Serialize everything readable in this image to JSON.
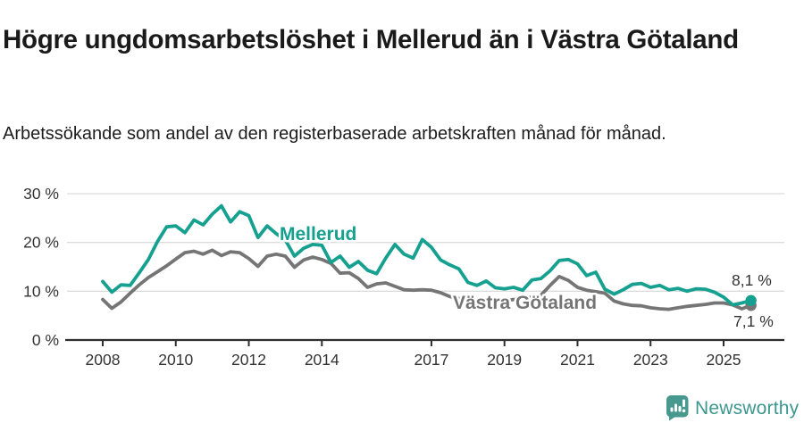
{
  "header": {
    "title": "Högre ungdomsarbetslöshet i Mellerud än i Västra Götaland",
    "subtitle": "Arbetssökande som andel av den registerbaserade arbetskraften månad för månad."
  },
  "chart_data": {
    "type": "line",
    "title": "Högre ungdomsarbetslöshet i Mellerud än i Västra Götaland",
    "xlabel": "",
    "ylabel": "",
    "grid": "horizontal",
    "legend_position": "inline-labels",
    "ylim": [
      0,
      30
    ],
    "xlim": [
      2007,
      2026.6
    ],
    "y_ticks": [
      {
        "value": 30,
        "label": "30 %"
      },
      {
        "value": 20,
        "label": "20 %"
      },
      {
        "value": 10,
        "label": "10 %"
      },
      {
        "value": 0,
        "label": "0 %"
      }
    ],
    "x_ticks": [
      {
        "value": 2008,
        "label": "2008"
      },
      {
        "value": 2010,
        "label": "2010"
      },
      {
        "value": 2012,
        "label": "2012"
      },
      {
        "value": 2014,
        "label": "2014"
      },
      {
        "value": 2017,
        "label": "2017"
      },
      {
        "value": 2019,
        "label": "2019"
      },
      {
        "value": 2021,
        "label": "2021"
      },
      {
        "value": 2023,
        "label": "2023"
      },
      {
        "value": 2025,
        "label": "2025"
      }
    ],
    "series": [
      {
        "name": "Mellerud",
        "color": "#16a08f",
        "x_start": 2008.0,
        "x_step": 0.25,
        "values": [
          12.0,
          9.8,
          11.3,
          11.2,
          13.8,
          16.5,
          20.2,
          23.2,
          23.4,
          22.0,
          24.6,
          23.6,
          25.8,
          27.5,
          24.2,
          26.3,
          25.5,
          21.0,
          23.4,
          21.8,
          20.5,
          17.2,
          18.8,
          19.6,
          19.4,
          15.9,
          17.2,
          14.9,
          16.1,
          14.3,
          13.6,
          16.8,
          19.6,
          17.6,
          16.8,
          20.6,
          19.0,
          16.4,
          15.4,
          14.6,
          11.8,
          11.2,
          12.1,
          10.7,
          10.5,
          10.8,
          10.2,
          12.3,
          12.6,
          14.2,
          16.3,
          16.5,
          15.6,
          13.2,
          13.9,
          10.4,
          9.4,
          10.3,
          11.4,
          11.6,
          10.8,
          11.2,
          10.3,
          10.6,
          10.0,
          10.5,
          10.4,
          9.8,
          8.8,
          7.2,
          7.6,
          8.1
        ],
        "end_value": 8.1,
        "end_label": "8,1 %"
      },
      {
        "name": "Västra Götaland",
        "color": "#757575",
        "x_start": 2008.0,
        "x_step": 0.25,
        "values": [
          8.3,
          6.5,
          7.8,
          9.6,
          11.3,
          12.8,
          14.0,
          15.2,
          16.6,
          17.9,
          18.2,
          17.6,
          18.4,
          17.3,
          18.1,
          17.9,
          16.7,
          15.1,
          17.2,
          17.6,
          17.2,
          14.9,
          16.4,
          17.0,
          16.5,
          15.7,
          13.7,
          13.8,
          12.6,
          10.8,
          11.5,
          11.7,
          11.0,
          10.3,
          10.2,
          10.3,
          10.2,
          9.7,
          8.9,
          8.5,
          8.2,
          8.0,
          8.3,
          8.2,
          8.0,
          8.3,
          8.5,
          8.8,
          9.2,
          11.2,
          13.0,
          12.2,
          10.8,
          10.2,
          9.9,
          9.6,
          8.0,
          7.4,
          7.1,
          7.0,
          6.6,
          6.4,
          6.3,
          6.6,
          6.9,
          7.1,
          7.3,
          7.6,
          7.6,
          7.2,
          6.4,
          7.1
        ],
        "end_value": 7.1,
        "end_label": "7,1 %"
      }
    ]
  },
  "style": {
    "grid_color": "#dcdcdc",
    "axis_color": "#2e2e2e",
    "label_color": "#333333"
  },
  "footer": {
    "brand": "Newsworthy",
    "brand_color": "#3d978e",
    "logo_color": "#47988e"
  }
}
